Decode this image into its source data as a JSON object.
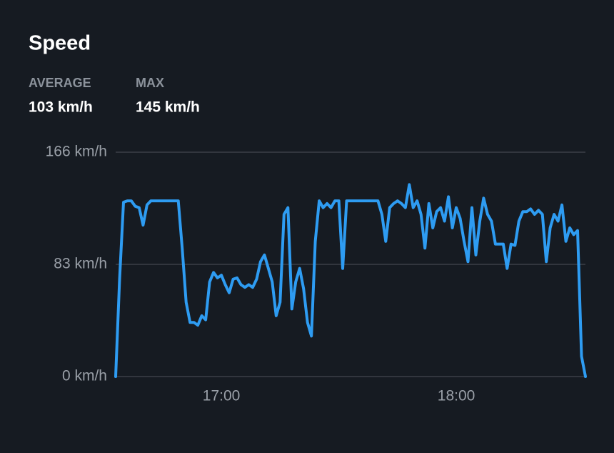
{
  "chart_data": {
    "type": "line",
    "title": "Speed",
    "stats": [
      {
        "label": "AVERAGE",
        "value": "103 km/h"
      },
      {
        "label": "MAX",
        "value": "145 km/h"
      }
    ],
    "x": [
      "16:33",
      "16:34",
      "16:35",
      "16:36",
      "16:37",
      "16:38",
      "16:39",
      "16:40",
      "16:41",
      "16:42",
      "16:43",
      "16:44",
      "16:45",
      "16:46",
      "16:47",
      "16:48",
      "16:49",
      "16:50",
      "16:51",
      "16:52",
      "16:53",
      "16:54",
      "16:55",
      "16:56",
      "16:57",
      "16:58",
      "16:59",
      "17:00",
      "17:01",
      "17:02",
      "17:03",
      "17:04",
      "17:05",
      "17:06",
      "17:07",
      "17:08",
      "17:09",
      "17:10",
      "17:11",
      "17:12",
      "17:13",
      "17:14",
      "17:15",
      "17:16",
      "17:17",
      "17:18",
      "17:19",
      "17:20",
      "17:21",
      "17:22",
      "17:23",
      "17:24",
      "17:25",
      "17:26",
      "17:27",
      "17:28",
      "17:29",
      "17:30",
      "17:31",
      "17:32",
      "17:33",
      "17:34",
      "17:35",
      "17:36",
      "17:37",
      "17:38",
      "17:39",
      "17:40",
      "17:41",
      "17:42",
      "17:43",
      "17:44",
      "17:45",
      "17:46",
      "17:47",
      "17:48",
      "17:49",
      "17:50",
      "17:51",
      "17:52",
      "17:53",
      "17:54",
      "17:55",
      "17:56",
      "17:57",
      "17:58",
      "17:59",
      "18:00",
      "18:01",
      "18:02",
      "18:03",
      "18:04",
      "18:05",
      "18:06",
      "18:07",
      "18:08",
      "18:09",
      "18:10",
      "18:11",
      "18:12",
      "18:13",
      "18:14",
      "18:15",
      "18:16",
      "18:17",
      "18:18",
      "18:19",
      "18:20",
      "18:21",
      "18:22",
      "18:23",
      "18:24",
      "18:25",
      "18:26",
      "18:27",
      "18:28",
      "18:29",
      "18:30",
      "18:31",
      "18:32",
      "18:33"
    ],
    "values": [
      0,
      72,
      129,
      130,
      130,
      126,
      125,
      112,
      127,
      130,
      130,
      130,
      130,
      130,
      130,
      130,
      130,
      95,
      55,
      40,
      40,
      38,
      45,
      42,
      70,
      77,
      73,
      75,
      68,
      62,
      72,
      73,
      68,
      66,
      68,
      66,
      72,
      85,
      90,
      80,
      70,
      45,
      55,
      120,
      125,
      50,
      70,
      80,
      65,
      40,
      30,
      100,
      130,
      125,
      128,
      125,
      130,
      130,
      80,
      130,
      130,
      130,
      130,
      130,
      130,
      130,
      130,
      130,
      120,
      100,
      125,
      128,
      130,
      128,
      125,
      142,
      125,
      130,
      120,
      95,
      128,
      110,
      122,
      125,
      115,
      133,
      110,
      125,
      117,
      100,
      85,
      125,
      90,
      115,
      132,
      120,
      115,
      98,
      98,
      98,
      80,
      98,
      97,
      115,
      122,
      122,
      124,
      120,
      123,
      120,
      85,
      110,
      120,
      115,
      127,
      100,
      110,
      105,
      108,
      15,
      0
    ],
    "color": "#2e9cf2",
    "xlim": [
      "16:33",
      "18:33"
    ],
    "xticks": [
      "17:00",
      "18:00"
    ],
    "ylim": [
      0,
      166
    ],
    "yticks": [
      {
        "value": 0,
        "label": "0 km/h"
      },
      {
        "value": 83,
        "label": "83 km/h"
      },
      {
        "value": 166,
        "label": "166 km/h"
      }
    ],
    "grid": true
  }
}
